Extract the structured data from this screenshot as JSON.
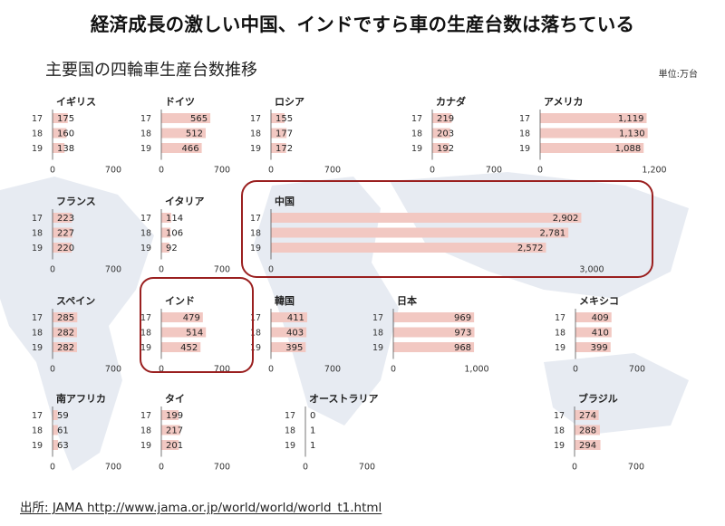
{
  "headline": "経済成長の激しい中国、インドですら車の生産台数は落ちている",
  "subtitle": "主要国の四輪車生産台数推移",
  "unit_label": "単位:万台",
  "source": "出所: JAMA http://www.jama.or.jp/world/world/world_t1.html",
  "colors": {
    "bar": "#f2c8c2",
    "highlight": "#9a1f1f",
    "map": "#dfe4ee"
  },
  "chart_data": [
    {
      "type": "bar",
      "name": "イギリス",
      "categories": [
        "17",
        "18",
        "19"
      ],
      "values": [
        175,
        160,
        138
      ],
      "value_labels": [
        "175",
        "160",
        "138"
      ],
      "xlim": [
        0,
        700
      ],
      "tick_labels": [
        "0",
        "700"
      ]
    },
    {
      "type": "bar",
      "name": "ドイツ",
      "categories": [
        "17",
        "18",
        "19"
      ],
      "values": [
        565,
        512,
        466
      ],
      "value_labels": [
        "565",
        "512",
        "466"
      ],
      "xlim": [
        0,
        700
      ],
      "tick_labels": [
        "0",
        "700"
      ]
    },
    {
      "type": "bar",
      "name": "ロシア",
      "categories": [
        "17",
        "18",
        "19"
      ],
      "values": [
        155,
        177,
        172
      ],
      "value_labels": [
        "155",
        "177",
        "172"
      ],
      "xlim": [
        0,
        700
      ],
      "tick_labels": [
        "0",
        "700"
      ]
    },
    {
      "type": "bar",
      "name": "カナダ",
      "categories": [
        "17",
        "18",
        "19"
      ],
      "values": [
        219,
        203,
        192
      ],
      "value_labels": [
        "219",
        "203",
        "192"
      ],
      "xlim": [
        0,
        700
      ],
      "tick_labels": [
        "0",
        "700"
      ]
    },
    {
      "type": "bar",
      "name": "アメリカ",
      "categories": [
        "17",
        "18",
        "19"
      ],
      "values": [
        1119,
        1130,
        1088
      ],
      "value_labels": [
        "1,119",
        "1,130",
        "1,088"
      ],
      "xlim": [
        0,
        1200
      ],
      "tick_labels": [
        "0",
        "1,200"
      ]
    },
    {
      "type": "bar",
      "name": "フランス",
      "categories": [
        "17",
        "18",
        "19"
      ],
      "values": [
        223,
        227,
        220
      ],
      "value_labels": [
        "223",
        "227",
        "220"
      ],
      "xlim": [
        0,
        700
      ],
      "tick_labels": [
        "0",
        "700"
      ]
    },
    {
      "type": "bar",
      "name": "イタリア",
      "categories": [
        "17",
        "18",
        "19"
      ],
      "values": [
        114,
        106,
        92
      ],
      "value_labels": [
        "114",
        "106",
        "92"
      ],
      "xlim": [
        0,
        700
      ],
      "tick_labels": [
        "0",
        "700"
      ]
    },
    {
      "type": "bar",
      "name": "中国",
      "categories": [
        "17",
        "18",
        "19"
      ],
      "values": [
        2902,
        2781,
        2572
      ],
      "value_labels": [
        "2,902",
        "2,781",
        "2,572"
      ],
      "xlim": [
        0,
        3000
      ],
      "tick_labels": [
        "0",
        "3,000"
      ],
      "highlighted": true
    },
    {
      "type": "bar",
      "name": "スペイン",
      "categories": [
        "17",
        "18",
        "19"
      ],
      "values": [
        285,
        282,
        282
      ],
      "value_labels": [
        "285",
        "282",
        "282"
      ],
      "xlim": [
        0,
        700
      ],
      "tick_labels": [
        "0",
        "700"
      ]
    },
    {
      "type": "bar",
      "name": "インド",
      "categories": [
        "17",
        "18",
        "19"
      ],
      "values": [
        479,
        514,
        452
      ],
      "value_labels": [
        "479",
        "514",
        "452"
      ],
      "xlim": [
        0,
        700
      ],
      "tick_labels": [
        "0",
        "700"
      ],
      "highlighted": true
    },
    {
      "type": "bar",
      "name": "韓国",
      "categories": [
        "17",
        "18",
        "19"
      ],
      "values": [
        411,
        403,
        395
      ],
      "value_labels": [
        "411",
        "403",
        "395"
      ],
      "xlim": [
        0,
        700
      ],
      "tick_labels": [
        "0",
        "700"
      ]
    },
    {
      "type": "bar",
      "name": "日本",
      "categories": [
        "17",
        "18",
        "19"
      ],
      "values": [
        969,
        973,
        968
      ],
      "value_labels": [
        "969",
        "973",
        "968"
      ],
      "xlim": [
        0,
        1000
      ],
      "tick_labels": [
        "0",
        "1,000"
      ]
    },
    {
      "type": "bar",
      "name": "メキシコ",
      "categories": [
        "17",
        "18",
        "19"
      ],
      "values": [
        409,
        410,
        399
      ],
      "value_labels": [
        "409",
        "410",
        "399"
      ],
      "xlim": [
        0,
        700
      ],
      "tick_labels": [
        "0",
        "700"
      ]
    },
    {
      "type": "bar",
      "name": "南アフリカ",
      "categories": [
        "17",
        "18",
        "19"
      ],
      "values": [
        59,
        61,
        63
      ],
      "value_labels": [
        "59",
        "61",
        "63"
      ],
      "xlim": [
        0,
        700
      ],
      "tick_labels": [
        "0",
        "700"
      ]
    },
    {
      "type": "bar",
      "name": "タイ",
      "categories": [
        "17",
        "18",
        "19"
      ],
      "values": [
        199,
        217,
        201
      ],
      "value_labels": [
        "199",
        "217",
        "201"
      ],
      "xlim": [
        0,
        700
      ],
      "tick_labels": [
        "0",
        "700"
      ]
    },
    {
      "type": "bar",
      "name": "オーストラリア",
      "categories": [
        "17",
        "18",
        "19"
      ],
      "values": [
        0,
        1,
        1
      ],
      "value_labels": [
        "0",
        "1",
        "1"
      ],
      "xlim": [
        0,
        700
      ],
      "tick_labels": [
        "0",
        "700"
      ]
    },
    {
      "type": "bar",
      "name": "ブラジル",
      "categories": [
        "17",
        "18",
        "19"
      ],
      "values": [
        274,
        288,
        294
      ],
      "value_labels": [
        "274",
        "288",
        "294"
      ],
      "xlim": [
        0,
        700
      ],
      "tick_labels": [
        "0",
        "700"
      ]
    }
  ]
}
